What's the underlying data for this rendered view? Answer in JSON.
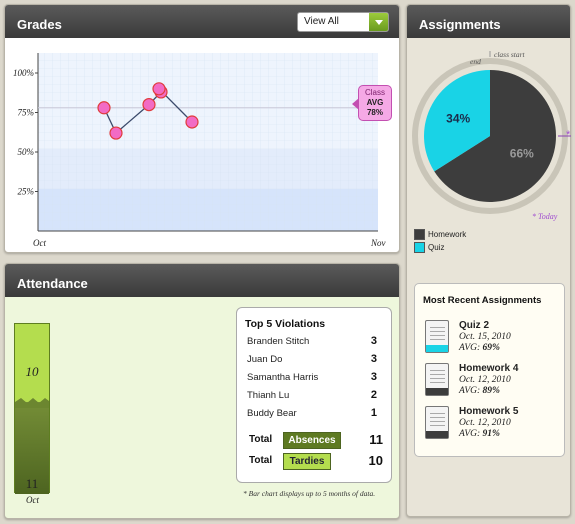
{
  "grades": {
    "title": "Grades",
    "filter_value": "View All",
    "y_ticks": [
      "100%",
      "75%",
      "50%",
      "25%"
    ],
    "x_start": "Oct",
    "x_end": "Nov",
    "class_avg": {
      "line1": "Class",
      "line2": "AVG",
      "value": "78%"
    },
    "chart_data": {
      "type": "line",
      "x_start_label": "Oct",
      "x_end_label": "Nov",
      "ylim": [
        0,
        100
      ],
      "y_ticks": [
        25,
        50,
        75,
        100
      ],
      "points": [
        78,
        62,
        80,
        88,
        90,
        69
      ],
      "reference_line": 78,
      "colors": {
        "line": "#3b4a6b",
        "marker": "#f26bc4",
        "marker_border": "#e03b3b",
        "background": "#e8f0fc"
      }
    }
  },
  "attendance": {
    "title": "Attendance",
    "bar": {
      "top_value": "10",
      "bottom_value": "11",
      "month": "Oct"
    },
    "violations_title": "Top 5 Violations",
    "violations": [
      {
        "name": "Branden Stitch",
        "count": "3"
      },
      {
        "name": "Juan Do",
        "count": "3"
      },
      {
        "name": "Samantha Harris",
        "count": "3"
      },
      {
        "name": "Thianh Lu",
        "count": "2"
      },
      {
        "name": "Buddy Bear",
        "count": "1"
      }
    ],
    "totals": [
      {
        "label": "Total",
        "tag": "Absences",
        "value": "11"
      },
      {
        "label": "Total",
        "tag": "Tardies",
        "value": "10"
      }
    ],
    "footnote": "* Bar chart displays up to 5 months of data."
  },
  "assignments": {
    "title": "Assignments",
    "pie_label_end": "end",
    "pie_label_start": "class start",
    "today_note": "* Today",
    "chart_data": {
      "type": "pie",
      "slices": [
        {
          "name": "Homework",
          "value": 66,
          "label": "66%",
          "color": "#3d3d3d"
        },
        {
          "name": "Quiz",
          "value": 34,
          "label": "34%",
          "color": "#19d3e6"
        }
      ]
    },
    "legend": [
      {
        "label": "Homework",
        "color": "#3d3d3d"
      },
      {
        "label": "Quiz",
        "color": "#19d3e6"
      }
    ],
    "recent_title": "Most Recent Assignments",
    "recent": [
      {
        "title": "Quiz 2",
        "date": "Oct. 15, 2010",
        "avg_label": "AVG:",
        "avg": "69%",
        "color": "#19d3e6"
      },
      {
        "title": "Homework 4",
        "date": "Oct. 12, 2010",
        "avg_label": "AVG:",
        "avg": "89%",
        "color": "#3d3d3d"
      },
      {
        "title": "Homework 5",
        "date": "Oct. 12, 2010",
        "avg_label": "AVG:",
        "avg": "91%",
        "color": "#3d3d3d"
      }
    ]
  }
}
